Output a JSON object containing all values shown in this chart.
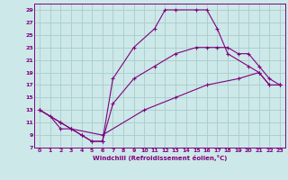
{
  "xlabel": "Windchill (Refroidissement éolien,°C)",
  "bg_color": "#cce8e8",
  "line_color": "#800080",
  "grid_color": "#aacccc",
  "spine_color": "#800080",
  "xlim": [
    -0.5,
    23.5
  ],
  "ylim": [
    7,
    30
  ],
  "yticks": [
    7,
    9,
    11,
    13,
    15,
    17,
    19,
    21,
    23,
    25,
    27,
    29
  ],
  "xticks": [
    0,
    1,
    2,
    3,
    4,
    5,
    6,
    7,
    8,
    9,
    10,
    11,
    12,
    13,
    14,
    15,
    16,
    17,
    18,
    19,
    20,
    21,
    22,
    23
  ],
  "curve1_x": [
    0,
    1,
    2,
    3,
    4,
    5,
    6,
    7,
    9,
    11,
    12,
    13,
    15,
    16,
    17,
    18,
    20,
    21,
    22,
    23
  ],
  "curve1_y": [
    13,
    12,
    10,
    10,
    9,
    8,
    8,
    18,
    23,
    26,
    29,
    29,
    29,
    29,
    26,
    22,
    20,
    19,
    17,
    17
  ],
  "curve2_x": [
    0,
    2,
    3,
    4,
    5,
    6,
    7,
    9,
    11,
    13,
    15,
    16,
    17,
    18,
    19,
    20,
    21,
    22,
    23
  ],
  "curve2_y": [
    13,
    11,
    10,
    9,
    8,
    8,
    14,
    18,
    20,
    22,
    23,
    23,
    23,
    23,
    22,
    22,
    20,
    18,
    17
  ],
  "curve3_x": [
    0,
    2,
    3,
    6,
    10,
    13,
    16,
    19,
    21,
    22,
    23
  ],
  "curve3_y": [
    13,
    11,
    10,
    9,
    13,
    15,
    17,
    18,
    19,
    17,
    17
  ]
}
